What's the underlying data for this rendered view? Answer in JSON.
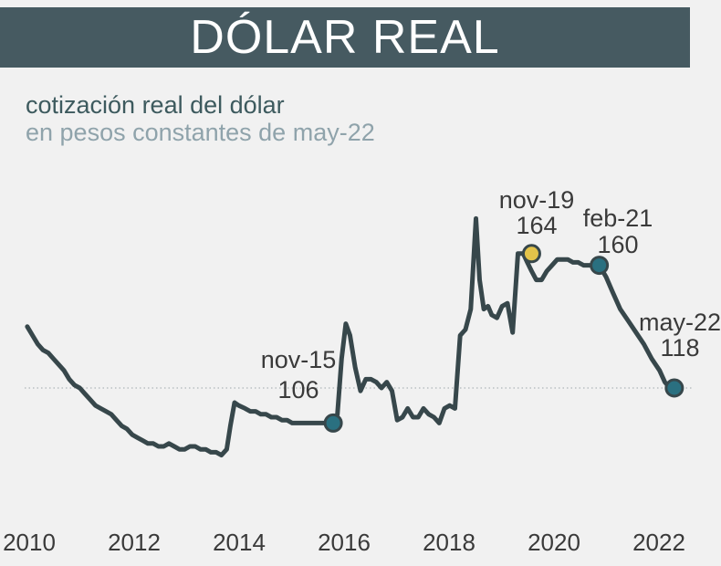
{
  "header": {
    "title": "DÓLAR REAL"
  },
  "chart_data": {
    "type": "line",
    "title": "cotización real del dólar",
    "subtitle": "en pesos constantes de may-22",
    "xlabel": "",
    "ylabel": "",
    "xlim": [
      2010,
      2022.6
    ],
    "ylim": [
      70,
      190
    ],
    "x_ticks": [
      "2010",
      "2012",
      "2014",
      "2016",
      "2018",
      "2020",
      "2022"
    ],
    "reference_line": {
      "y": 118,
      "style": "dotted"
    },
    "colors": {
      "line": "#37474b",
      "point": "#2a7080",
      "highlight": "#e3c34a",
      "header": "#465a61"
    },
    "series": [
      {
        "x": [
          2010.05,
          2010.15,
          2010.25,
          2010.35,
          2010.45,
          2010.55,
          2010.65,
          2010.75,
          2010.85,
          2010.95,
          2011.05,
          2011.15,
          2011.25,
          2011.35,
          2011.45,
          2011.55,
          2011.65,
          2011.75,
          2011.85,
          2011.95,
          2012.05,
          2012.15,
          2012.25,
          2012.35,
          2012.45,
          2012.55,
          2012.65,
          2012.75,
          2012.85,
          2012.95,
          2013.05,
          2013.15,
          2013.25,
          2013.35,
          2013.45,
          2013.55,
          2013.65,
          2013.75,
          2013.85,
          2013.92,
          2014.0,
          2014.08,
          2014.2,
          2014.3,
          2014.4,
          2014.5,
          2014.6,
          2014.7,
          2014.8,
          2014.9,
          2015.0,
          2015.1,
          2015.2,
          2015.3,
          2015.4,
          2015.5,
          2015.6,
          2015.7,
          2015.8,
          2015.88,
          2015.96,
          2016.04,
          2016.12,
          2016.2,
          2016.3,
          2016.4,
          2016.5,
          2016.6,
          2016.7,
          2016.8,
          2016.9,
          2017.0,
          2017.1,
          2017.2,
          2017.3,
          2017.4,
          2017.5,
          2017.6,
          2017.7,
          2017.8,
          2017.9,
          2018.0,
          2018.1,
          2018.2,
          2018.3,
          2018.4,
          2018.5,
          2018.6,
          2018.67,
          2018.75,
          2018.83,
          2018.9,
          2019.0,
          2019.1,
          2019.2,
          2019.3,
          2019.4,
          2019.5,
          2019.58,
          2019.66,
          2019.75,
          2019.85,
          2019.95,
          2020.05,
          2020.15,
          2020.25,
          2020.35,
          2020.45,
          2020.55,
          2020.65,
          2020.75,
          2020.85,
          2020.95,
          2021.08,
          2021.2,
          2021.35,
          2021.5,
          2021.65,
          2021.8,
          2021.95,
          2022.1,
          2022.2,
          2022.3,
          2022.38
        ],
        "y": [
          139,
          136,
          133,
          131,
          130,
          128,
          126,
          124,
          121,
          119,
          118,
          116,
          114,
          112,
          111,
          110,
          109,
          107,
          105,
          104,
          102,
          101,
          100,
          99,
          99,
          98,
          98,
          99,
          98,
          97,
          97,
          98,
          98,
          97,
          97,
          96,
          96,
          95,
          97,
          105,
          113,
          112,
          111,
          110,
          110,
          109,
          109,
          108,
          108,
          107,
          107,
          106,
          106,
          106,
          106,
          106,
          106,
          106,
          106,
          106,
          109,
          128,
          140,
          136,
          125,
          117,
          121,
          121,
          120,
          118,
          120,
          117,
          107,
          108,
          111,
          108,
          108,
          111,
          109,
          108,
          106,
          111,
          112,
          111,
          136,
          138,
          145,
          176,
          155,
          145,
          146,
          143,
          142,
          146,
          147,
          137,
          164,
          164,
          161,
          158,
          155,
          155,
          158,
          160,
          162,
          162,
          162,
          161,
          161,
          160,
          160,
          160,
          160,
          156,
          151,
          145,
          141,
          137,
          133,
          128,
          124,
          120,
          118,
          118
        ]
      }
    ],
    "highlights": [
      {
        "date": "nov-15",
        "value": "106",
        "x": 2015.88,
        "y": 106,
        "color": "#2a7080"
      },
      {
        "date": "nov-19",
        "value": "164",
        "x": 2019.66,
        "y": 164,
        "color": "#e3c34a"
      },
      {
        "date": "feb-21",
        "value": "160",
        "x": 2020.95,
        "y": 160,
        "color": "#2a7080"
      },
      {
        "date": "may-22",
        "value": "118",
        "x": 2022.38,
        "y": 118,
        "color": "#2a7080"
      }
    ]
  }
}
